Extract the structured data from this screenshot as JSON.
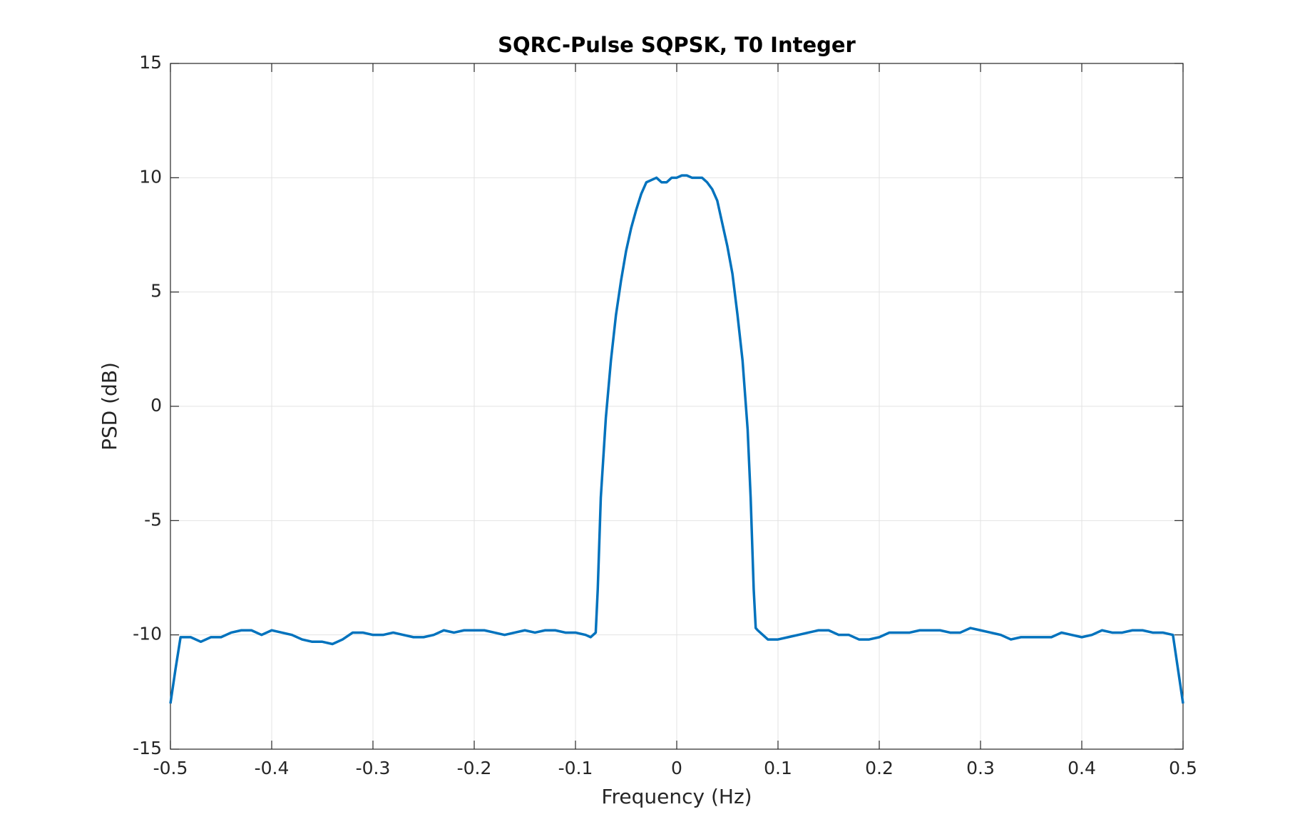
{
  "chart_data": {
    "type": "line",
    "title": "SQRC-Pulse SQPSK, T0 Integer",
    "x_label": "Frequency (Hz)",
    "y_label": "PSD (dB)",
    "xlim": [
      -0.5,
      0.5
    ],
    "xticks": [
      -0.5,
      -0.4,
      -0.3,
      -0.2,
      -0.1,
      0,
      0.1,
      0.2,
      0.3,
      0.4,
      0.5
    ],
    "ylim": [
      -15,
      15
    ],
    "yticks": [
      -15,
      -10,
      -5,
      0,
      5,
      10,
      15
    ],
    "grid": true,
    "series": [
      {
        "color": "#0072bd",
        "x": [
          -0.5,
          -0.495,
          -0.49,
          -0.48,
          -0.47,
          -0.46,
          -0.45,
          -0.44,
          -0.43,
          -0.42,
          -0.41,
          -0.4,
          -0.39,
          -0.38,
          -0.37,
          -0.36,
          -0.35,
          -0.34,
          -0.33,
          -0.32,
          -0.31,
          -0.3,
          -0.29,
          -0.28,
          -0.27,
          -0.26,
          -0.25,
          -0.24,
          -0.23,
          -0.22,
          -0.21,
          -0.2,
          -0.19,
          -0.18,
          -0.17,
          -0.16,
          -0.15,
          -0.14,
          -0.13,
          -0.12,
          -0.11,
          -0.1,
          -0.09,
          -0.085,
          -0.08,
          -0.078,
          -0.075,
          -0.07,
          -0.065,
          -0.06,
          -0.055,
          -0.05,
          -0.045,
          -0.04,
          -0.035,
          -0.03,
          -0.025,
          -0.02,
          -0.015,
          -0.01,
          -0.005,
          0,
          0.005,
          0.01,
          0.015,
          0.02,
          0.025,
          0.03,
          0.035,
          0.04,
          0.045,
          0.05,
          0.055,
          0.06,
          0.065,
          0.07,
          0.073,
          0.076,
          0.078,
          0.08,
          0.09,
          0.1,
          0.11,
          0.12,
          0.13,
          0.14,
          0.15,
          0.16,
          0.17,
          0.18,
          0.19,
          0.2,
          0.21,
          0.22,
          0.23,
          0.24,
          0.25,
          0.26,
          0.27,
          0.28,
          0.29,
          0.3,
          0.31,
          0.32,
          0.33,
          0.34,
          0.35,
          0.36,
          0.37,
          0.38,
          0.39,
          0.4,
          0.41,
          0.42,
          0.43,
          0.44,
          0.45,
          0.46,
          0.47,
          0.48,
          0.49,
          0.495,
          0.5
        ],
        "values": [
          -13,
          -11.5,
          -10.1,
          -10.1,
          -10.3,
          -10.1,
          -10.1,
          -9.9,
          -9.8,
          -9.8,
          -10,
          -9.8,
          -9.9,
          -10,
          -10.2,
          -10.3,
          -10.3,
          -10.4,
          -10.2,
          -9.9,
          -9.9,
          -10,
          -10,
          -9.9,
          -10,
          -10.1,
          -10.1,
          -10,
          -9.8,
          -9.9,
          -9.8,
          -9.8,
          -9.8,
          -9.9,
          -10,
          -9.9,
          -9.8,
          -9.9,
          -9.8,
          -9.8,
          -9.9,
          -9.9,
          -10,
          -10.1,
          -9.9,
          -8,
          -4,
          -0.5,
          2,
          4,
          5.5,
          6.8,
          7.8,
          8.6,
          9.3,
          9.8,
          9.9,
          10,
          9.8,
          9.8,
          10,
          10,
          10.1,
          10.1,
          10,
          10,
          10,
          9.8,
          9.5,
          9,
          8,
          7,
          5.8,
          4,
          2,
          -1,
          -4,
          -8,
          -9.7,
          -9.8,
          -10.2,
          -10.2,
          -10.1,
          -10,
          -9.9,
          -9.8,
          -9.8,
          -10,
          -10,
          -10.2,
          -10.2,
          -10.1,
          -9.9,
          -9.9,
          -9.9,
          -9.8,
          -9.8,
          -9.8,
          -9.9,
          -9.9,
          -9.7,
          -9.8,
          -9.9,
          -10,
          -10.2,
          -10.1,
          -10.1,
          -10.1,
          -10.1,
          -9.9,
          -10,
          -10.1,
          -10,
          -9.8,
          -9.9,
          -9.9,
          -9.8,
          -9.8,
          -9.9,
          -9.9,
          -10,
          -11.5,
          -13
        ]
      }
    ]
  }
}
